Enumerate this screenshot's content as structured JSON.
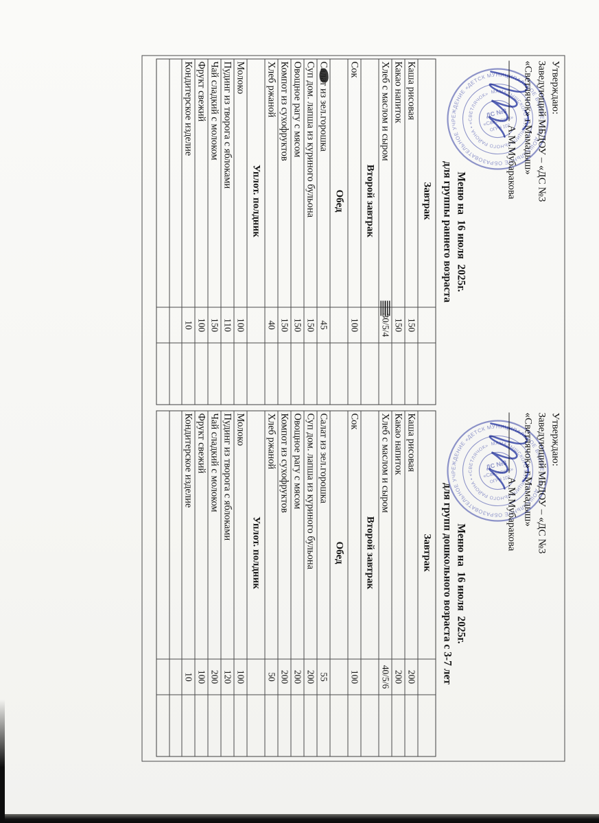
{
  "approval": {
    "line1": "Утверждаю:",
    "line2": "Заведующий МБДОУ – «ДС №3",
    "line3": "«Светлячок» г.Мамадыш»",
    "signature_name": "А.М.Мубаракова"
  },
  "stamp": {
    "ring_text_outer": "МУНИЦИПАЛЬНОЕ БЮДЖЕТНОЕ ДОШКОЛЬНОЕ ОБРАЗОВАТЕЛЬНОЕ УЧРЕЖДЕНИЕ «ДЕТСКИЙ САД №3 «СВЕТЛЯЧОК» • ",
    "ring_text_inner": "МАМАДЫШСКОГО МУНИЦИПАЛЬНОГО РАЙОНА • «СВЕТЛЯЧОК» БАЛАЛАР БАКЧАСЫ • ",
    "center_line1": "ДС №3",
    "center_line2": "«Светлячок»",
    "center_line3": "ОГРН 102",
    "color": "#7d84c2"
  },
  "colors": {
    "paper": "#f6f6f3",
    "ink": "#161616",
    "stamp_blue": "#7d84c2",
    "signature_blue": "#3344a8",
    "grid_line": "#4a4a4a"
  },
  "menus": [
    {
      "title_line1": "Меню на  16 июля  2025г.",
      "title_line2": "для группы раннего возраста",
      "rows": [
        {
          "type": "section",
          "label": "Завтрак"
        },
        {
          "type": "item",
          "label": "Каша рисовая",
          "value": "150"
        },
        {
          "type": "item",
          "label": "Какао напиток",
          "value": "150"
        },
        {
          "type": "item",
          "label": "Хлеб с маслом и сыром",
          "value": "30/5/4",
          "scratch": true
        },
        {
          "type": "section",
          "label": "Второй завтрак"
        },
        {
          "type": "item",
          "label": "Сок",
          "value": "100"
        },
        {
          "type": "section",
          "label": "Обед"
        },
        {
          "type": "item",
          "label": "Салат из зел.горошка",
          "value": "45",
          "blot": true
        },
        {
          "type": "item",
          "label": "Суп дом. лапша из куриного бульона",
          "value": "150"
        },
        {
          "type": "item",
          "label": "Овощное рагу с мясом",
          "value": "150"
        },
        {
          "type": "item",
          "label": "Компот из сухофруктов",
          "value": "150"
        },
        {
          "type": "item",
          "label": "Хлеб ржаной",
          "value": "40"
        },
        {
          "type": "section",
          "label": "Уплот. полдник"
        },
        {
          "type": "item",
          "label": "Молоко",
          "value": "100"
        },
        {
          "type": "item",
          "label": "Пудинг из творога с яблоками",
          "value": "110"
        },
        {
          "type": "item",
          "label": "Чай сладкий с молоком",
          "value": "150"
        },
        {
          "type": "item",
          "label": "Фрукт свежий",
          "value": "100"
        },
        {
          "type": "item",
          "label": "Кондитерское изделие",
          "value": "10"
        },
        {
          "type": "empty"
        },
        {
          "type": "empty"
        }
      ]
    },
    {
      "title_line1": "Меню на  16 июля  2025г.",
      "title_line2": "для групп дошкольного возраста с 3-7 лет",
      "rows": [
        {
          "type": "section",
          "label": "Завтрак"
        },
        {
          "type": "item",
          "label": "Каша рисовая",
          "value": "200"
        },
        {
          "type": "item",
          "label": "Какао напиток",
          "value": "200"
        },
        {
          "type": "item",
          "label": "Хлеб с маслом и сыром",
          "value": "40/5/6"
        },
        {
          "type": "section",
          "label": "Второй завтрак"
        },
        {
          "type": "item",
          "label": "Сок",
          "value": "100"
        },
        {
          "type": "section",
          "label": "Обед"
        },
        {
          "type": "item",
          "label": "Салат из зел.горошка",
          "value": "55"
        },
        {
          "type": "item",
          "label": "Суп дом. лапша из куриного бульона",
          "value": "200"
        },
        {
          "type": "item",
          "label": "Овощное рагу с мясом",
          "value": "200"
        },
        {
          "type": "item",
          "label": "Компот из сухофруктов",
          "value": "200"
        },
        {
          "type": "item",
          "label": "Хлеб ржаной",
          "value": "50"
        },
        {
          "type": "section",
          "label": "Уплот. полдник"
        },
        {
          "type": "item",
          "label": "Молоко",
          "value": "100"
        },
        {
          "type": "item",
          "label": "Пудинг из творога с яблоками",
          "value": "120"
        },
        {
          "type": "item",
          "label": "Чай сладкий с молоком",
          "value": "200"
        },
        {
          "type": "item",
          "label": "Фрукт свежий",
          "value": "100"
        },
        {
          "type": "item",
          "label": "Кондитерское изделие",
          "value": "10"
        },
        {
          "type": "empty"
        },
        {
          "type": "empty"
        }
      ]
    }
  ]
}
